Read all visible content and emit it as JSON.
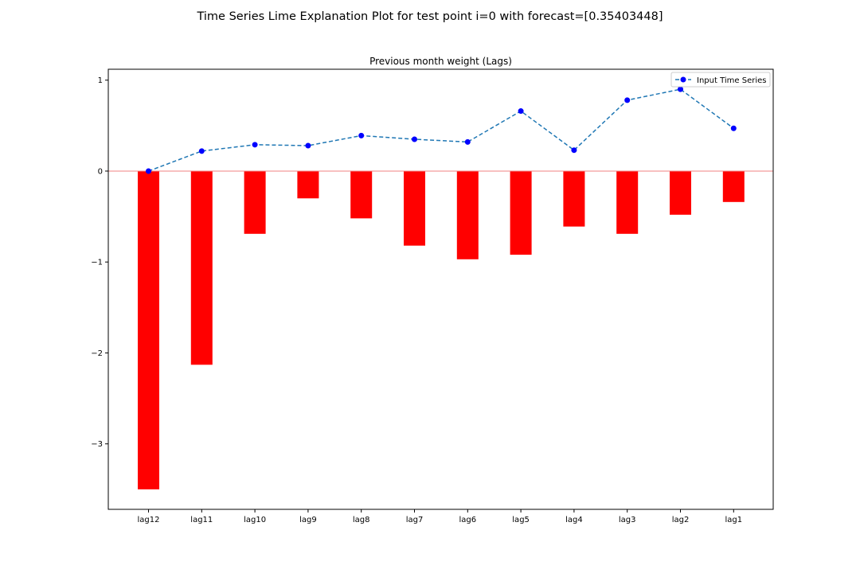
{
  "figure": {
    "suptitle": "Time Series Lime Explanation Plot for test point i=0 with forecast=[0.35403448]"
  },
  "chart_data": {
    "type": "bar",
    "title": "Previous month weight (Lags)",
    "xlabel": "",
    "ylabel": "",
    "categories": [
      "lag12",
      "lag11",
      "lag10",
      "lag9",
      "lag8",
      "lag7",
      "lag6",
      "lag5",
      "lag4",
      "lag3",
      "lag2",
      "lag1"
    ],
    "ylim": [
      -3.72,
      1.12
    ],
    "yticks": [
      1,
      0,
      -1,
      -2,
      -3
    ],
    "ytick_labels": [
      "1",
      "0",
      "−1",
      "−2",
      "−3"
    ],
    "grid": false,
    "legend_position": "top-right",
    "zero_line": {
      "y": 0,
      "color": "#f08080"
    },
    "series": [
      {
        "kind": "bar",
        "color": "#ff0000",
        "values": [
          -3.5,
          -2.13,
          -0.69,
          -0.3,
          -0.52,
          -0.82,
          -0.97,
          -0.92,
          -0.61,
          -0.69,
          -0.48,
          -0.34
        ]
      },
      {
        "kind": "line",
        "name": "Input Time Series",
        "line_color": "#1f77b4",
        "marker_color": "#0000ff",
        "line_style": "dashed",
        "values": [
          0.0,
          0.22,
          0.29,
          0.28,
          0.39,
          0.35,
          0.32,
          0.66,
          0.23,
          0.78,
          0.9,
          0.47
        ]
      }
    ]
  }
}
